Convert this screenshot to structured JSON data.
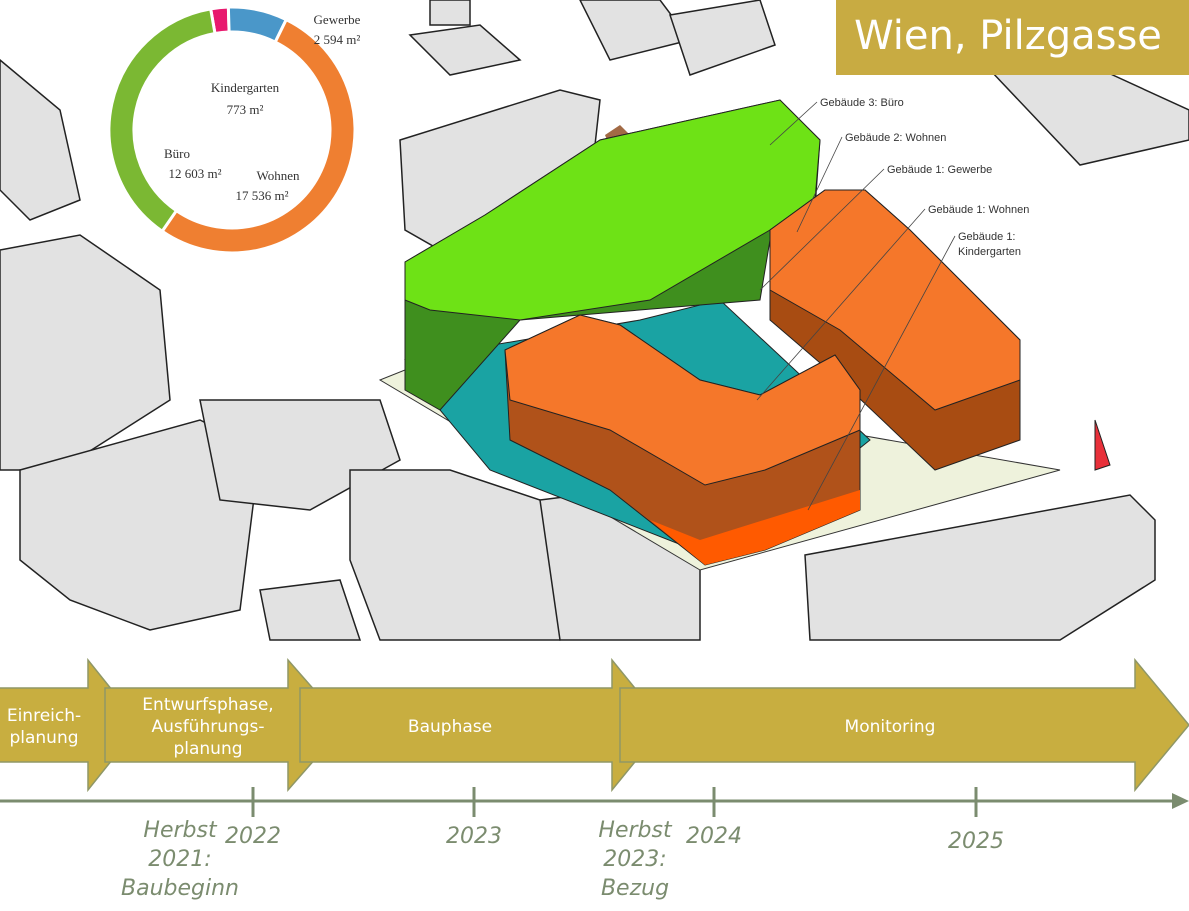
{
  "title": "Wien, Pilzgasse",
  "chart_data": {
    "type": "pie",
    "categories": [
      "Kindergarten",
      "Gewerbe",
      "Wohnen",
      "Büro"
    ],
    "values": [
      773,
      2594,
      17536,
      12603
    ],
    "value_labels": [
      "773 m²",
      "2 594 m²",
      "17 536 m²",
      "12 603 m²"
    ],
    "colors": [
      "#e8196e",
      "#4a97c9",
      "#ef7f31",
      "#7bb833"
    ]
  },
  "buildings": [
    {
      "lines": [
        "Gebäude 3: Büro"
      ]
    },
    {
      "lines": [
        "Gebäude 2: Wohnen"
      ]
    },
    {
      "lines": [
        "Gebäude 1: Gewerbe"
      ]
    },
    {
      "lines": [
        "Gebäude 1: Wohnen"
      ]
    },
    {
      "lines": [
        "Gebäude 1:",
        "Kindergarten"
      ]
    }
  ],
  "timeline": {
    "phases": [
      {
        "lines": [
          "Einreich-",
          "planung"
        ]
      },
      {
        "lines": [
          "Entwurfsphase,",
          "Ausführungs-",
          "planung"
        ]
      },
      {
        "lines": [
          "Bauphase"
        ]
      },
      {
        "lines": [
          "Monitoring"
        ]
      }
    ],
    "years": [
      "2022",
      "2023",
      "2024",
      "2025"
    ],
    "notes": [
      {
        "lines": [
          "Herbst",
          "2021:",
          "Baubeginn"
        ]
      },
      {
        "lines": [
          "Herbst",
          "2023:",
          "Bezug"
        ]
      }
    ]
  }
}
